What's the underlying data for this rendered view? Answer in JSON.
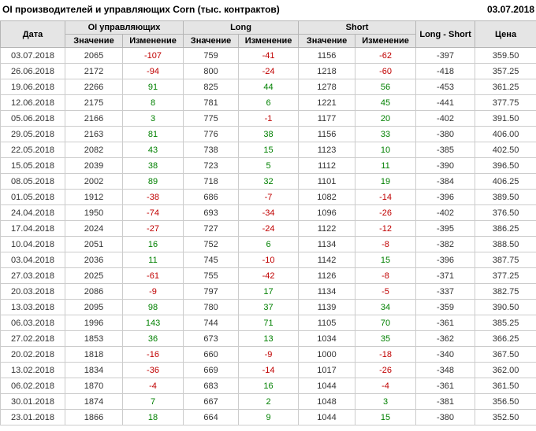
{
  "page": {
    "title": "OI производителей и управляющих Corn (тыс. контрактов)",
    "date": "03.07.2018"
  },
  "table": {
    "headers": {
      "date": "Дата",
      "oi_group": "OI управляющих",
      "long_group": "Long",
      "short_group": "Short",
      "long_short": "Long - Short",
      "price": "Цена",
      "value": "Значение",
      "change": "Изменение"
    },
    "colors": {
      "positive": "#008000",
      "negative": "#c00000",
      "header_bg": "#e5e5e5",
      "border": "#cccccc",
      "text": "#333333"
    },
    "rows": [
      {
        "date": "03.07.2018",
        "oi": 2065,
        "oi_chg": -107,
        "long": 759,
        "long_chg": -41,
        "short": 1156,
        "short_chg": -62,
        "long_short": -397,
        "price": "359.50"
      },
      {
        "date": "26.06.2018",
        "oi": 2172,
        "oi_chg": -94,
        "long": 800,
        "long_chg": -24,
        "short": 1218,
        "short_chg": -60,
        "long_short": -418,
        "price": "357.25"
      },
      {
        "date": "19.06.2018",
        "oi": 2266,
        "oi_chg": 91,
        "long": 825,
        "long_chg": 44,
        "short": 1278,
        "short_chg": 56,
        "long_short": -453,
        "price": "361.25"
      },
      {
        "date": "12.06.2018",
        "oi": 2175,
        "oi_chg": 8,
        "long": 781,
        "long_chg": 6,
        "short": 1221,
        "short_chg": 45,
        "long_short": -441,
        "price": "377.75"
      },
      {
        "date": "05.06.2018",
        "oi": 2166,
        "oi_chg": 3,
        "long": 775,
        "long_chg": -1,
        "short": 1177,
        "short_chg": 20,
        "long_short": -402,
        "price": "391.50"
      },
      {
        "date": "29.05.2018",
        "oi": 2163,
        "oi_chg": 81,
        "long": 776,
        "long_chg": 38,
        "short": 1156,
        "short_chg": 33,
        "long_short": -380,
        "price": "406.00"
      },
      {
        "date": "22.05.2018",
        "oi": 2082,
        "oi_chg": 43,
        "long": 738,
        "long_chg": 15,
        "short": 1123,
        "short_chg": 10,
        "long_short": -385,
        "price": "402.50"
      },
      {
        "date": "15.05.2018",
        "oi": 2039,
        "oi_chg": 38,
        "long": 723,
        "long_chg": 5,
        "short": 1112,
        "short_chg": 11,
        "long_short": -390,
        "price": "396.50"
      },
      {
        "date": "08.05.2018",
        "oi": 2002,
        "oi_chg": 89,
        "long": 718,
        "long_chg": 32,
        "short": 1101,
        "short_chg": 19,
        "long_short": -384,
        "price": "406.25"
      },
      {
        "date": "01.05.2018",
        "oi": 1912,
        "oi_chg": -38,
        "long": 686,
        "long_chg": -7,
        "short": 1082,
        "short_chg": -14,
        "long_short": -396,
        "price": "389.50"
      },
      {
        "date": "24.04.2018",
        "oi": 1950,
        "oi_chg": -74,
        "long": 693,
        "long_chg": -34,
        "short": 1096,
        "short_chg": -26,
        "long_short": -402,
        "price": "376.50"
      },
      {
        "date": "17.04.2018",
        "oi": 2024,
        "oi_chg": -27,
        "long": 727,
        "long_chg": -24,
        "short": 1122,
        "short_chg": -12,
        "long_short": -395,
        "price": "386.25"
      },
      {
        "date": "10.04.2018",
        "oi": 2051,
        "oi_chg": 16,
        "long": 752,
        "long_chg": 6,
        "short": 1134,
        "short_chg": -8,
        "long_short": -382,
        "price": "388.50"
      },
      {
        "date": "03.04.2018",
        "oi": 2036,
        "oi_chg": 11,
        "long": 745,
        "long_chg": -10,
        "short": 1142,
        "short_chg": 15,
        "long_short": -396,
        "price": "387.75"
      },
      {
        "date": "27.03.2018",
        "oi": 2025,
        "oi_chg": -61,
        "long": 755,
        "long_chg": -42,
        "short": 1126,
        "short_chg": -8,
        "long_short": -371,
        "price": "377.25"
      },
      {
        "date": "20.03.2018",
        "oi": 2086,
        "oi_chg": -9,
        "long": 797,
        "long_chg": 17,
        "short": 1134,
        "short_chg": -5,
        "long_short": -337,
        "price": "382.75"
      },
      {
        "date": "13.03.2018",
        "oi": 2095,
        "oi_chg": 98,
        "long": 780,
        "long_chg": 37,
        "short": 1139,
        "short_chg": 34,
        "long_short": -359,
        "price": "390.50"
      },
      {
        "date": "06.03.2018",
        "oi": 1996,
        "oi_chg": 143,
        "long": 744,
        "long_chg": 71,
        "short": 1105,
        "short_chg": 70,
        "long_short": -361,
        "price": "385.25"
      },
      {
        "date": "27.02.2018",
        "oi": 1853,
        "oi_chg": 36,
        "long": 673,
        "long_chg": 13,
        "short": 1034,
        "short_chg": 35,
        "long_short": -362,
        "price": "366.25"
      },
      {
        "date": "20.02.2018",
        "oi": 1818,
        "oi_chg": -16,
        "long": 660,
        "long_chg": -9,
        "short": 1000,
        "short_chg": -18,
        "long_short": -340,
        "price": "367.50"
      },
      {
        "date": "13.02.2018",
        "oi": 1834,
        "oi_chg": -36,
        "long": 669,
        "long_chg": -14,
        "short": 1017,
        "short_chg": -26,
        "long_short": -348,
        "price": "362.00"
      },
      {
        "date": "06.02.2018",
        "oi": 1870,
        "oi_chg": -4,
        "long": 683,
        "long_chg": 16,
        "short": 1044,
        "short_chg": -4,
        "long_short": -361,
        "price": "361.50"
      },
      {
        "date": "30.01.2018",
        "oi": 1874,
        "oi_chg": 7,
        "long": 667,
        "long_chg": 2,
        "short": 1048,
        "short_chg": 3,
        "long_short": -381,
        "price": "356.50"
      },
      {
        "date": "23.01.2018",
        "oi": 1866,
        "oi_chg": 18,
        "long": 664,
        "long_chg": 9,
        "short": 1044,
        "short_chg": 15,
        "long_short": -380,
        "price": "352.50"
      }
    ]
  }
}
